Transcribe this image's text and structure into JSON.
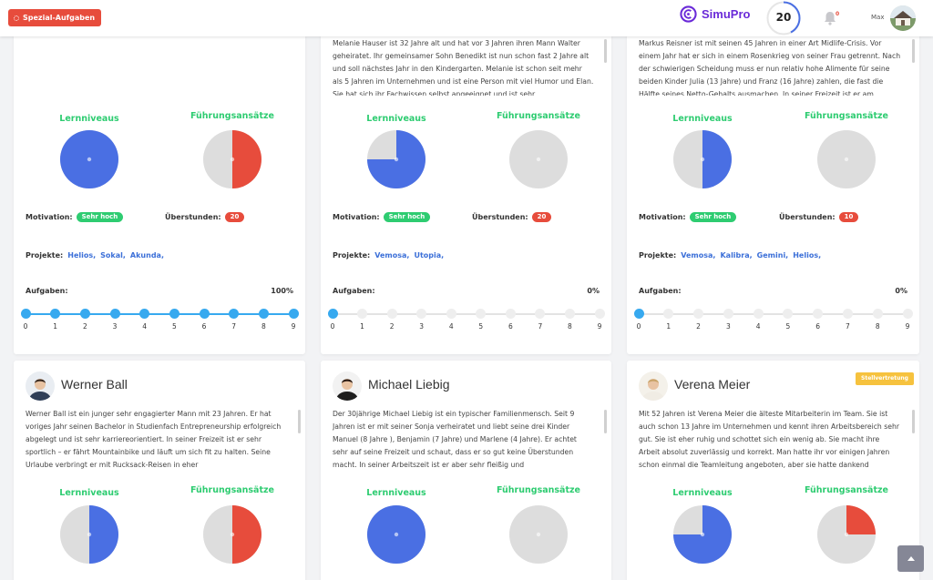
{
  "header": {
    "special_tasks_label": "Spezial-Aufgaben",
    "brand_name": "SimuPro",
    "score": "20",
    "notification_count": "0",
    "user_name": "Max"
  },
  "labels": {
    "learning": "Lernniveaus",
    "leadership": "Führungsansätze",
    "motivation": "Motivation:",
    "overtime": "Überstunden:",
    "projects": "Projekte:",
    "tasks": "Aufgaben:"
  },
  "colors": {
    "blue": "#4a6fe3",
    "red": "#e74c3c",
    "gray": "#dddddd",
    "green": "#2ecc71"
  },
  "cards": [
    {
      "name": "",
      "text": "",
      "learning_fraction": 1.0,
      "leadership_fraction": 0.5,
      "leadership_color": "#e74c3c",
      "motivation": "Sehr hoch",
      "overtime": "20",
      "projects": [
        "Helios,",
        "Sokal,",
        "Akunda,"
      ],
      "tasks_percent": "100%",
      "tasks_done": 9
    },
    {
      "name": "",
      "text": "Melanie Hauser ist 32 Jahre alt und hat vor 3 Jahren ihren Mann Walter geheiratet. Ihr gemeinsamer Sohn Benedikt ist nun schon fast 2 Jahre alt und soll nächstes Jahr in den Kindergarten. Melanie ist schon seit mehr als 5 Jahren im Unternehmen und ist eine Person mit viel Humor und Elan. Sie hat sich ihr Fachwissen selbst angeeignet und ist sehr",
      "learning_fraction": 0.75,
      "leadership_fraction": 0,
      "leadership_color": "#e74c3c",
      "motivation": "Sehr hoch",
      "overtime": "20",
      "projects": [
        "Vemosa,",
        "Utopia,"
      ],
      "tasks_percent": "0%",
      "tasks_done": 0
    },
    {
      "name": "",
      "text": "Markus Reisner ist mit seinen 45 Jahren in einer Art Midlife-Crisis. Vor einem Jahr hat er sich in einem Rosenkrieg von seiner Frau getrennt. Nach der schwierigen Scheidung muss er nun relativ hohe Alimente für seine beiden Kinder Julia (13 Jahre) und Franz (16 Jahre) zahlen, die fast die Hälfte seines Netto-Gehalts ausmachen. In seiner Freizeit ist er am",
      "learning_fraction": 0.5,
      "leadership_fraction": 0,
      "leadership_color": "#e74c3c",
      "motivation": "Sehr hoch",
      "overtime": "10",
      "projects": [
        "Vemosa,",
        "Kalibra,",
        "Gemini,",
        "Helios,"
      ],
      "tasks_percent": "0%",
      "tasks_done": 0
    },
    {
      "name": "Werner Ball",
      "text": "Werner Ball ist ein junger sehr engagierter Mann mit 23 Jahren. Er hat voriges Jahr seinen Bachelor in Studienfach Entrepreneurship erfolgreich abgelegt und ist sehr karriereorientiert. In seiner Freizeit ist er sehr sportlich – er fährt Mountainbike und läuft um sich fit zu halten. Seine Urlaube verbringt er mit Rucksack-Reisen in eher",
      "learning_fraction": 0.5,
      "leadership_fraction": 0.5,
      "leadership_color": "#e74c3c"
    },
    {
      "name": "Michael Liebig",
      "text": "Der 30jährige Michael Liebig ist ein typischer Familienmensch. Seit 9 Jahren ist er mit seiner Sonja verheiratet und liebt seine drei Kinder Manuel (8 Jahre ), Benjamin (7 Jahre) und Marlene (4 Jahre). Er achtet sehr auf seine Freizeit und schaut, dass er so gut keine Überstunden macht. In seiner Arbeitszeit ist er aber sehr fleißig und",
      "learning_fraction": 1.0,
      "leadership_fraction": 0,
      "leadership_color": "#e74c3c"
    },
    {
      "name": "Verena Meier",
      "badge": "Stellvertretung",
      "text": "Mit 52 Jahren ist Verena Meier die älteste Mitarbeiterin im Team. Sie ist auch schon 13 Jahre im Unternehmen und kennt ihren Arbeitsbereich sehr gut. Sie ist eher ruhig und schottet sich ein wenig ab. Sie macht ihre Arbeit absolut zuverlässig und korrekt. Man hatte ihr vor einigen Jahren schon einmal die Teamleitung angeboten, aber sie hatte dankend",
      "learning_fraction": 0.75,
      "leadership_fraction": 0.25,
      "leadership_color": "#e74c3c"
    }
  ],
  "slider_ticks": [
    "0",
    "1",
    "2",
    "3",
    "4",
    "5",
    "6",
    "7",
    "8",
    "9"
  ]
}
